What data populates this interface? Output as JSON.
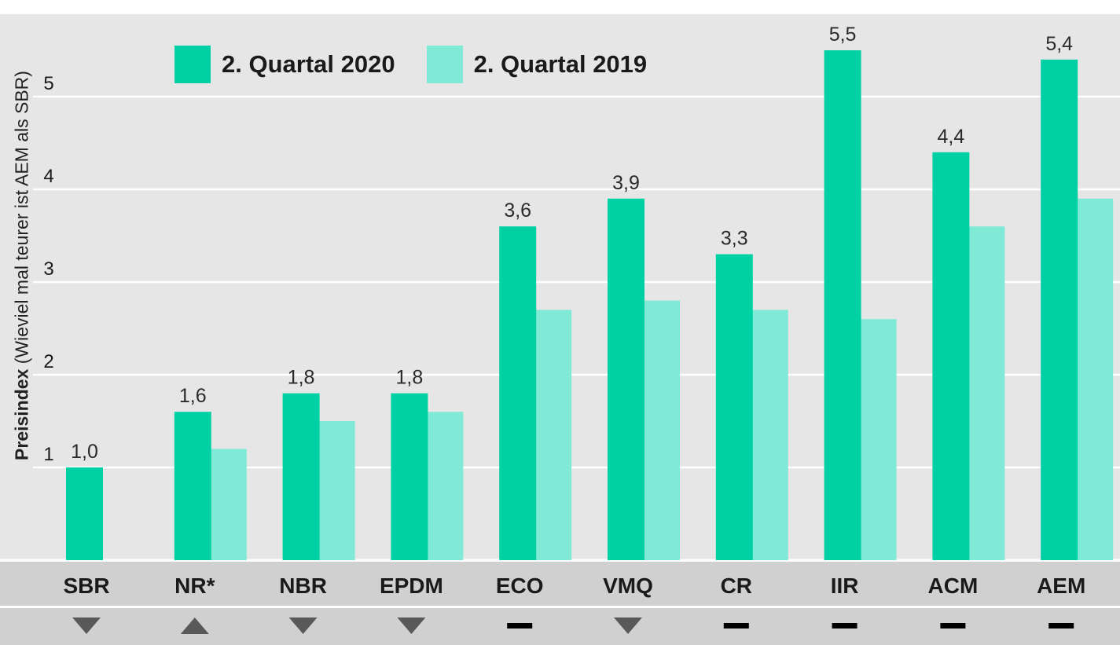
{
  "chart_data": {
    "type": "bar",
    "ylabel_bold": "Preisindex",
    "ylabel_rest": " (Wieviel  mal teurer ist AEM als SBR)",
    "ylim": [
      0,
      5.8
    ],
    "yticks": [
      1,
      2,
      3,
      4,
      5
    ],
    "grid": true,
    "legend_position": "top-left",
    "categories": [
      "SBR",
      "NR*",
      "NBR",
      "EPDM",
      "ECO",
      "VMQ",
      "CR",
      "IIR",
      "ACM",
      "AEM"
    ],
    "series": [
      {
        "name": "2. Quartal 2020",
        "color": "#00d1a4",
        "values": [
          1.0,
          1.6,
          1.8,
          1.8,
          3.6,
          3.9,
          3.3,
          5.5,
          4.4,
          5.4
        ],
        "labels": [
          "1,0",
          "1,6",
          "1,8",
          "1,8",
          "3,6",
          "3,9",
          "3,3",
          "5,5",
          "4,4",
          "5,4"
        ]
      },
      {
        "name": "2. Quartal 2019",
        "color": "#80ead6",
        "values": [
          null,
          1.2,
          1.5,
          1.6,
          2.7,
          2.8,
          2.7,
          2.6,
          3.6,
          3.9
        ]
      }
    ],
    "trend_symbols": [
      "down",
      "up",
      "down",
      "down",
      "flat",
      "down",
      "flat",
      "flat",
      "flat",
      "flat"
    ]
  },
  "colors": {
    "plot_bg": "#e6e6e6",
    "band_bg": "#d0d0d0",
    "grid": "#ffffff",
    "symbol": "#595959",
    "dash": "#000000",
    "text": "#1a1a1a"
  }
}
